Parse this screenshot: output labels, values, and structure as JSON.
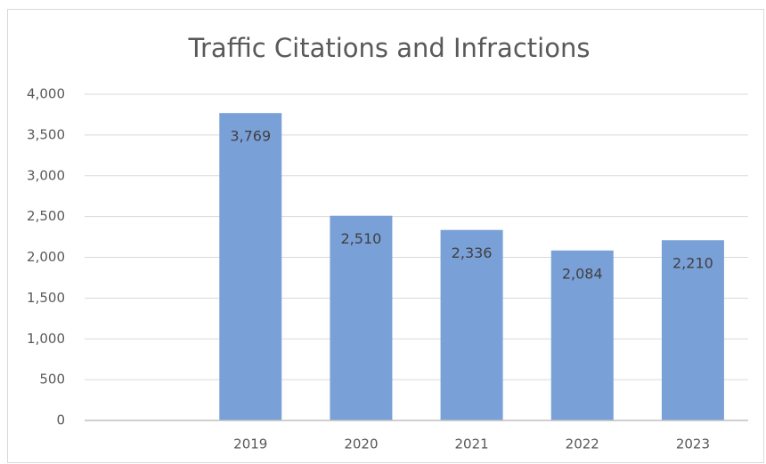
{
  "chart_data": {
    "type": "bar",
    "title": "Traffic Citations and Infractions",
    "categories": [
      null,
      "2019",
      "2020",
      "2021",
      "2022",
      "2023"
    ],
    "values": [
      null,
      3769,
      2510,
      2336,
      2084,
      2210
    ],
    "value_labels": [
      null,
      "3,769",
      "2,510",
      "2,336",
      "2,084",
      "2,210"
    ],
    "color": "#7aa0d8",
    "ylim": [
      0,
      4000
    ],
    "yticks": [
      0,
      500,
      {
        "value": 1000,
        "label": "1,000"
      },
      {
        "value": 1500,
        "label": "1,500"
      },
      {
        "value": 2000,
        "label": "2,000"
      },
      {
        "value": 2500,
        "label": "2,500"
      },
      {
        "value": 3000,
        "label": "3,000"
      },
      {
        "value": 3500,
        "label": "3,500"
      },
      {
        "value": 4000,
        "label": "4,000"
      }
    ],
    "grid": true
  }
}
